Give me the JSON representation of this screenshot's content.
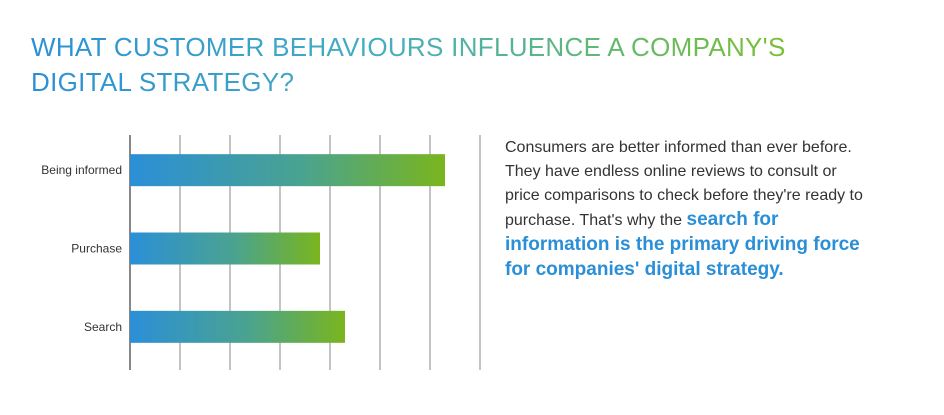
{
  "header": {
    "title": "WHAT CUSTOMER BEHAVIOURS INFLUENCE A COMPANY'S DIGITAL STRATEGY?"
  },
  "chart_data": {
    "type": "bar",
    "orientation": "horizontal",
    "categories": [
      "Being informed",
      "Purchase",
      "Search"
    ],
    "values": [
      63,
      38,
      43
    ],
    "xlim": [
      0,
      70
    ],
    "grid": true,
    "tick_labels_shown": false,
    "bar_gradient": [
      "#2b8fd8",
      "#7ab51d"
    ]
  },
  "description": {
    "text": "Consumers are better informed than ever before. They have endless online reviews to consult or price comparisons to check before they're ready to purchase. That's why the ",
    "highlight": "search for information is the primary driving force for companies' digital strategy."
  }
}
